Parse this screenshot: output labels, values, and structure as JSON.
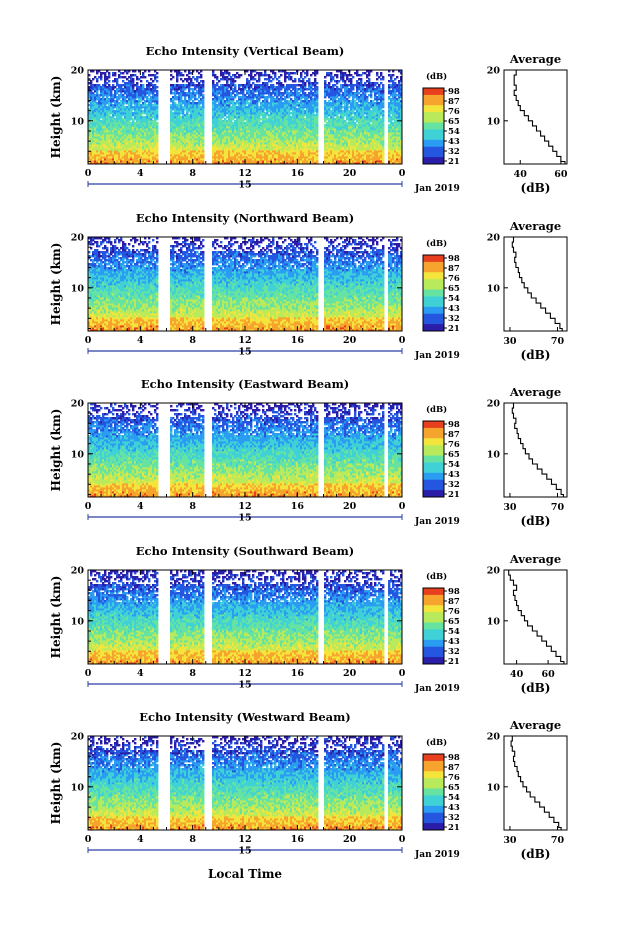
{
  "figure": {
    "bottom_xlabel": "Local Time",
    "date_label": "Jan 2019",
    "day_label": "15",
    "ylabel": "Height (km)",
    "avg_title": "Average",
    "avg_xlabel": "(dB)",
    "colorbar_unit": "(dB)",
    "colorbar_ticks": [
      "98",
      "87",
      "76",
      "65",
      "54",
      "43",
      "32",
      "21"
    ],
    "colorscale": [
      "#2a1da8",
      "#2456e0",
      "#2a9df2",
      "#3fd1d6",
      "#66e3a0",
      "#b8ea5c",
      "#f4e53c",
      "#f6a42d",
      "#e8401f"
    ]
  },
  "chart_data": [
    {
      "type": "heatmap",
      "title": "Echo Intensity (Vertical Beam)",
      "xlabel": "Local Time",
      "ylabel": "Height (km)",
      "x_ticks": [
        "0",
        "4",
        "8",
        "12",
        "16",
        "20",
        "0"
      ],
      "xlim": [
        0,
        24
      ],
      "y_ticks": [
        "10",
        "20"
      ],
      "ylim": [
        1.5,
        20
      ],
      "colorbar": {
        "label": "(dB)",
        "range": [
          21,
          98
        ],
        "ticks": [
          "98",
          "87",
          "76",
          "65",
          "54",
          "43",
          "32",
          "21"
        ]
      },
      "data_gaps_hours": [
        [
          5.3,
          6.3
        ],
        [
          8.9,
          9.5
        ],
        [
          17.6,
          18.1
        ],
        [
          22.6,
          22.9
        ]
      ],
      "inset": {
        "type": "line",
        "title": "Average",
        "xlabel": "(dB)",
        "x_ticks": [
          "40",
          "60"
        ],
        "xlim": [
          32,
          63
        ],
        "y_ticks": [
          "10",
          "20"
        ],
        "ylim": [
          1.5,
          20
        ],
        "height_km": [
          1.5,
          2.5,
          3.5,
          4.5,
          5.5,
          6.5,
          7.5,
          8.5,
          9.5,
          10.5,
          11.5,
          12.5,
          13.5,
          14.5,
          15.5,
          16.5,
          17.5,
          18.5,
          19.5
        ],
        "avg_db": [
          62,
          60,
          58,
          56,
          54,
          52,
          50,
          48,
          46,
          44,
          42,
          40,
          39,
          38,
          37,
          38,
          37,
          37,
          38
        ]
      }
    },
    {
      "type": "heatmap",
      "title": "Echo Intensity (Northward Beam)",
      "xlabel": "Local Time",
      "ylabel": "Height (km)",
      "x_ticks": [
        "0",
        "4",
        "8",
        "12",
        "16",
        "20",
        "0"
      ],
      "xlim": [
        0,
        24
      ],
      "y_ticks": [
        "10",
        "20"
      ],
      "ylim": [
        1.5,
        20
      ],
      "colorbar": {
        "label": "(dB)",
        "range": [
          21,
          98
        ],
        "ticks": [
          "98",
          "87",
          "76",
          "65",
          "54",
          "43",
          "32",
          "21"
        ]
      },
      "data_gaps_hours": [
        [
          5.3,
          6.3
        ],
        [
          8.9,
          9.5
        ],
        [
          17.6,
          18.1
        ],
        [
          22.6,
          22.9
        ]
      ],
      "inset": {
        "type": "line",
        "title": "Average",
        "xlabel": "(dB)",
        "x_ticks": [
          "30",
          "70"
        ],
        "xlim": [
          25,
          78
        ],
        "y_ticks": [
          "10",
          "20"
        ],
        "ylim": [
          1.5,
          20
        ],
        "height_km": [
          1.5,
          2.5,
          3.5,
          4.5,
          5.5,
          6.5,
          7.5,
          8.5,
          9.5,
          10.5,
          11.5,
          12.5,
          13.5,
          14.5,
          15.5,
          16.5,
          17.5,
          18.5,
          19.5
        ],
        "avg_db": [
          74,
          72,
          68,
          64,
          60,
          56,
          52,
          48,
          45,
          42,
          40,
          38,
          37,
          35,
          34,
          35,
          33,
          32,
          33
        ]
      }
    },
    {
      "type": "heatmap",
      "title": "Echo Intensity (Eastward Beam)",
      "xlabel": "Local Time",
      "ylabel": "Height (km)",
      "x_ticks": [
        "0",
        "4",
        "8",
        "12",
        "16",
        "20",
        "0"
      ],
      "xlim": [
        0,
        24
      ],
      "y_ticks": [
        "10",
        "20"
      ],
      "ylim": [
        1.5,
        20
      ],
      "colorbar": {
        "label": "(dB)",
        "range": [
          21,
          98
        ],
        "ticks": [
          "98",
          "87",
          "76",
          "65",
          "54",
          "43",
          "32",
          "21"
        ]
      },
      "data_gaps_hours": [
        [
          5.3,
          6.3
        ],
        [
          8.9,
          9.5
        ],
        [
          17.6,
          18.1
        ],
        [
          22.6,
          22.9
        ]
      ],
      "inset": {
        "type": "line",
        "title": "Average",
        "xlabel": "(dB)",
        "x_ticks": [
          "30",
          "70"
        ],
        "xlim": [
          25,
          78
        ],
        "y_ticks": [
          "10",
          "20"
        ],
        "ylim": [
          1.5,
          20
        ],
        "height_km": [
          1.5,
          2.5,
          3.5,
          4.5,
          5.5,
          6.5,
          7.5,
          8.5,
          9.5,
          10.5,
          11.5,
          12.5,
          13.5,
          14.5,
          15.5,
          16.5,
          17.5,
          18.5,
          19.5
        ],
        "avg_db": [
          75,
          73,
          69,
          65,
          61,
          57,
          53,
          49,
          46,
          43,
          41,
          39,
          37,
          36,
          34,
          35,
          33,
          32,
          33
        ]
      }
    },
    {
      "type": "heatmap",
      "title": "Echo Intensity (Southward Beam)",
      "xlabel": "Local Time",
      "ylabel": "Height (km)",
      "x_ticks": [
        "0",
        "4",
        "8",
        "12",
        "16",
        "20",
        "0"
      ],
      "xlim": [
        0,
        24
      ],
      "y_ticks": [
        "10",
        "20"
      ],
      "ylim": [
        1.5,
        20
      ],
      "colorbar": {
        "label": "(dB)",
        "range": [
          21,
          98
        ],
        "ticks": [
          "98",
          "87",
          "76",
          "65",
          "54",
          "43",
          "32",
          "21"
        ]
      },
      "data_gaps_hours": [
        [
          5.3,
          6.3
        ],
        [
          8.9,
          9.5
        ],
        [
          17.6,
          18.1
        ],
        [
          22.6,
          22.9
        ]
      ],
      "inset": {
        "type": "line",
        "title": "Average",
        "xlabel": "(dB)",
        "x_ticks": [
          "40",
          "60"
        ],
        "xlim": [
          32,
          72
        ],
        "y_ticks": [
          "10",
          "20"
        ],
        "ylim": [
          1.5,
          20
        ],
        "height_km": [
          1.5,
          2.5,
          3.5,
          4.5,
          5.5,
          6.5,
          7.5,
          8.5,
          9.5,
          10.5,
          11.5,
          12.5,
          13.5,
          14.5,
          15.5,
          16.5,
          17.5,
          18.5,
          19.5
        ],
        "avg_db": [
          70,
          68,
          65,
          62,
          59,
          56,
          53,
          50,
          47,
          45,
          43,
          41,
          40,
          39,
          38,
          40,
          38,
          36,
          35
        ]
      }
    },
    {
      "type": "heatmap",
      "title": "Echo Intensity (Westward Beam)",
      "xlabel": "Local Time",
      "ylabel": "Height (km)",
      "x_ticks": [
        "0",
        "4",
        "8",
        "12",
        "16",
        "20",
        "0"
      ],
      "xlim": [
        0,
        24
      ],
      "y_ticks": [
        "10",
        "20"
      ],
      "ylim": [
        1.5,
        20
      ],
      "colorbar": {
        "label": "(dB)",
        "range": [
          21,
          98
        ],
        "ticks": [
          "98",
          "87",
          "76",
          "65",
          "54",
          "43",
          "32",
          "21"
        ]
      },
      "data_gaps_hours": [
        [
          5.3,
          6.3
        ],
        [
          8.9,
          9.5
        ],
        [
          17.6,
          18.1
        ],
        [
          22.6,
          22.9
        ]
      ],
      "inset": {
        "type": "line",
        "title": "Average",
        "xlabel": "(dB)",
        "x_ticks": [
          "30",
          "70"
        ],
        "xlim": [
          25,
          78
        ],
        "y_ticks": [
          "10",
          "20"
        ],
        "ylim": [
          1.5,
          20
        ],
        "height_km": [
          1.5,
          2.5,
          3.5,
          4.5,
          5.5,
          6.5,
          7.5,
          8.5,
          9.5,
          10.5,
          11.5,
          12.5,
          13.5,
          14.5,
          15.5,
          16.5,
          17.5,
          18.5,
          19.5
        ],
        "avg_db": [
          73,
          71,
          67,
          63,
          59,
          55,
          51,
          47,
          44,
          41,
          39,
          37,
          36,
          34,
          33,
          34,
          32,
          31,
          32
        ]
      }
    }
  ]
}
